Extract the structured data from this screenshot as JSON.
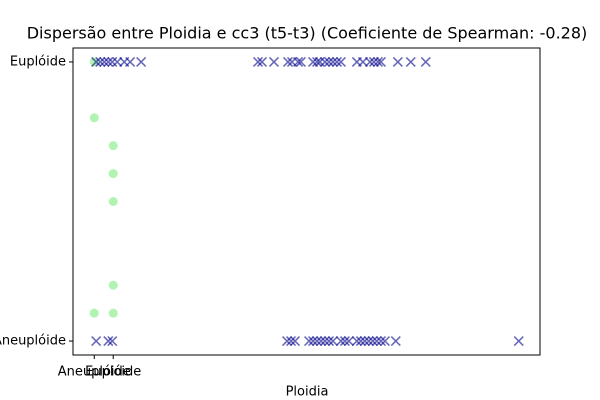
{
  "chart_data": {
    "type": "scatter",
    "title": "Dispersão entre Ploidia e cc3 (t5-t3) (Coeficiente de Spearman: -0.28)",
    "x_label": "Ploidia",
    "xlim": [
      -1.12,
      23.49
    ],
    "ylim": [
      -0.05,
      1.05
    ],
    "xticks": [
      {
        "value": 0,
        "label": "Aneuplóide"
      },
      {
        "value": 1,
        "label": "Euplóide"
      }
    ],
    "yticks": [
      {
        "value": 0,
        "label": "Aneuplóide"
      },
      {
        "value": 1,
        "label": "Euplóide"
      }
    ],
    "series": [
      {
        "color": "#90ee90",
        "marker": "o",
        "alpha": 0.7,
        "x": [
          0,
          0,
          1,
          1,
          1,
          1,
          0,
          1
        ],
        "values": [
          1,
          0.8,
          0.7,
          0.6,
          0.5,
          0.2,
          0.1,
          0.1
        ]
      },
      {
        "color": "#00008b",
        "marker": "x",
        "alpha": 0.6,
        "x": [
          0.1,
          0.32,
          0.53,
          0.74,
          0.95,
          1.21,
          1.58,
          1.89,
          2.47,
          8.63,
          8.84,
          9.47,
          10.21,
          10.42,
          10.74,
          10.89,
          11.53,
          11.74,
          11.89,
          12.16,
          12.37,
          12.58,
          12.79,
          13.0,
          13.84,
          14.16,
          14.53,
          14.74,
          14.95,
          15.11,
          16.0,
          16.68,
          17.47,
          0.1,
          0.74,
          0.95,
          10.16,
          10.37,
          10.58,
          11.32,
          11.53,
          11.74,
          11.95,
          12.16,
          12.37,
          12.58,
          13.0,
          13.21,
          13.42,
          13.84,
          14.05,
          14.26,
          14.47,
          14.68,
          14.89,
          15.11,
          15.32,
          15.89,
          22.37
        ],
        "values": [
          1,
          1,
          1,
          1,
          1,
          1,
          1,
          1,
          1,
          1,
          1,
          1,
          1,
          1,
          1,
          1,
          1,
          1,
          1,
          1,
          1,
          1,
          1,
          1,
          1,
          1,
          1,
          1,
          1,
          1,
          1,
          1,
          1,
          0,
          0,
          0,
          0,
          0,
          0,
          0,
          0,
          0,
          0,
          0,
          0,
          0,
          0,
          0,
          0,
          0,
          0,
          0,
          0,
          0,
          0,
          0,
          0,
          0,
          0
        ]
      }
    ]
  }
}
